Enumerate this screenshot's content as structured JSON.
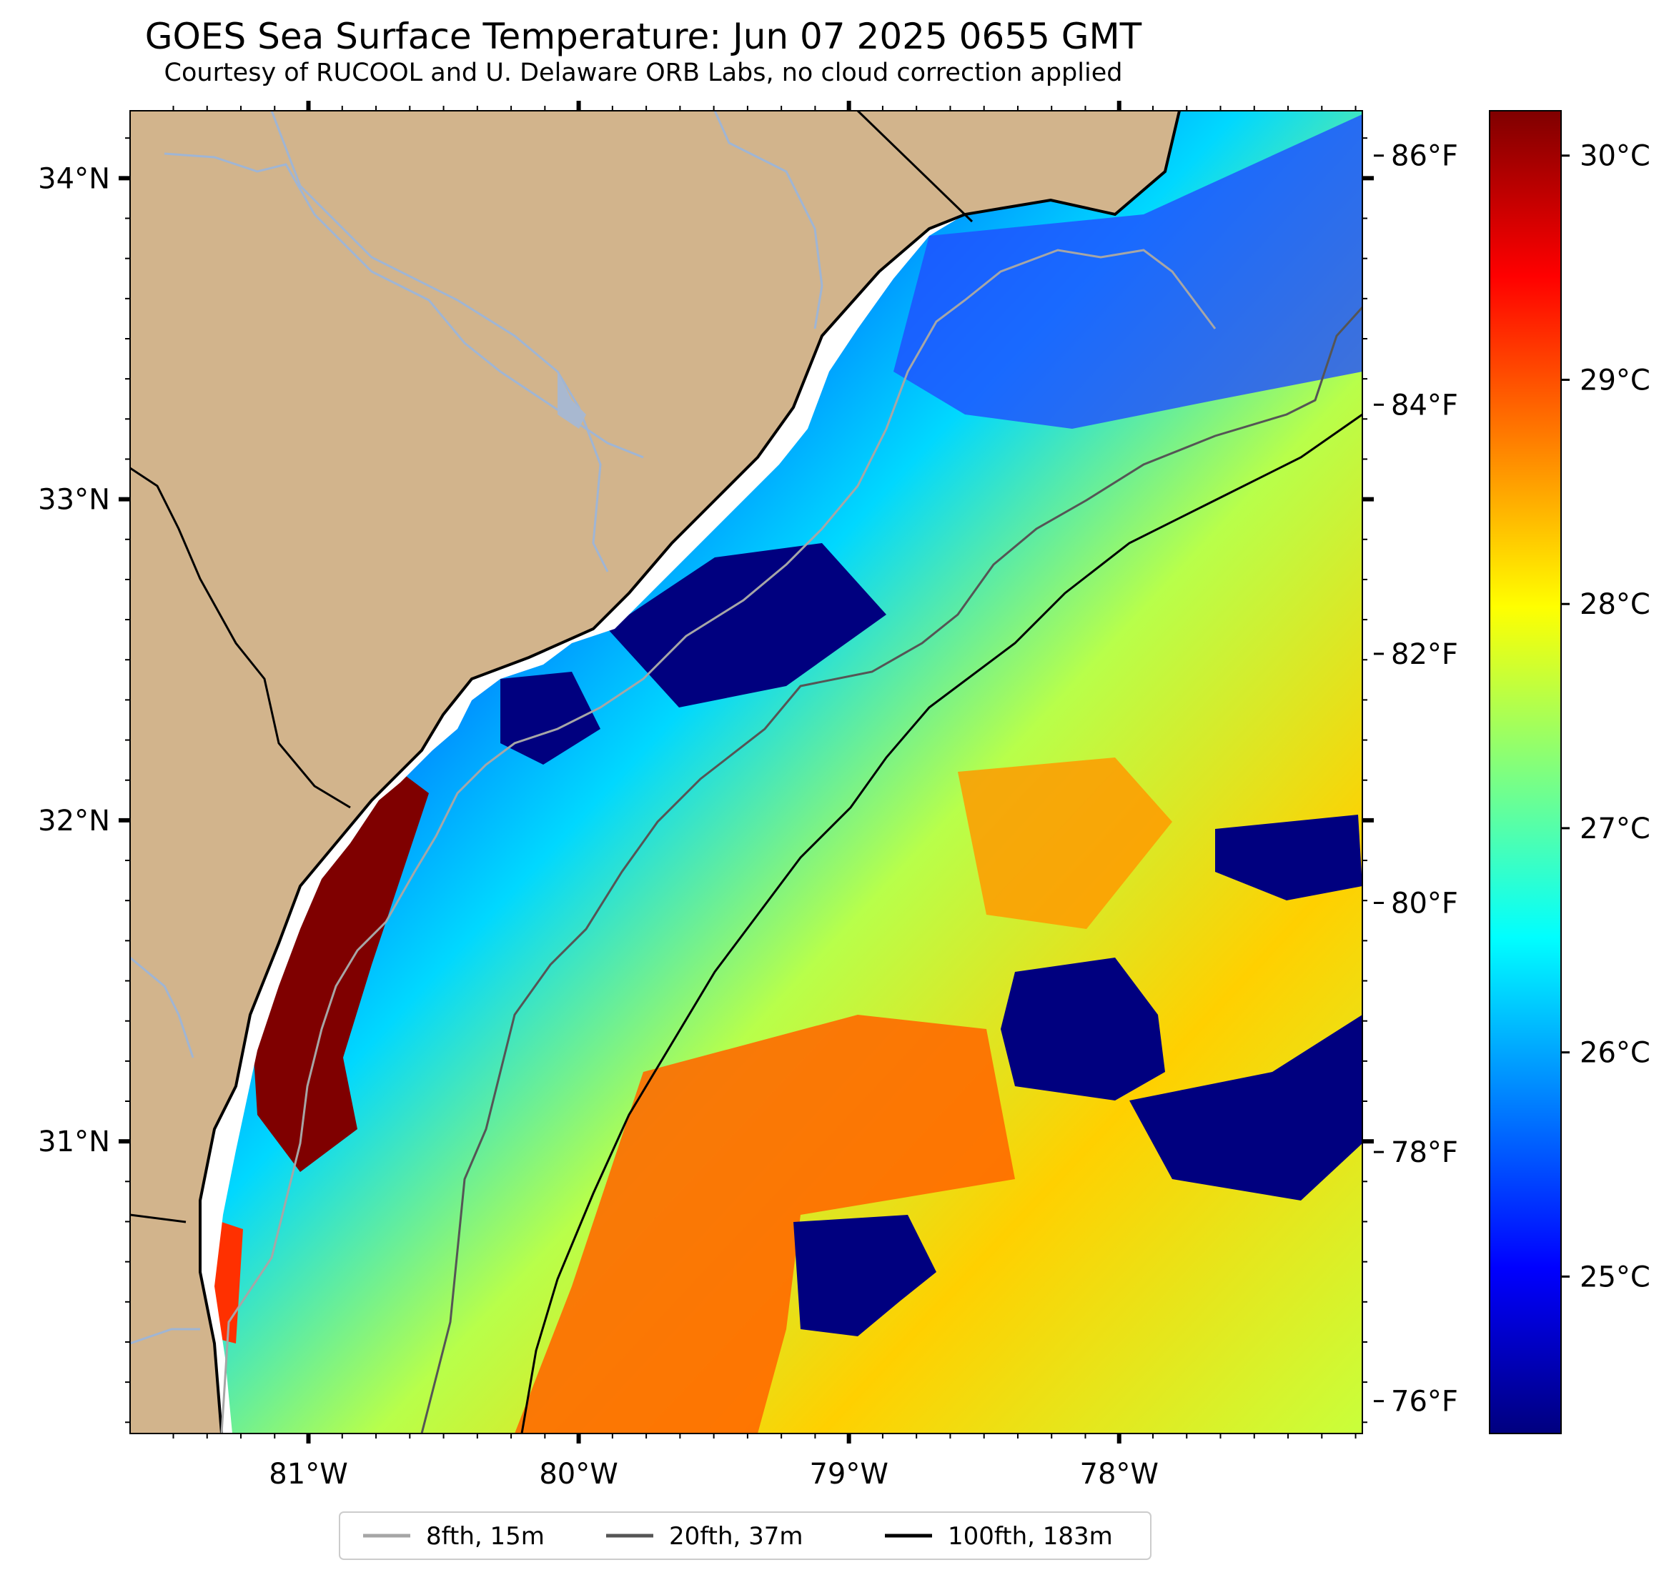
{
  "title": "GOES Sea Surface Temperature: Jun 07 2025 0655 GMT",
  "subtitle": "Courtesy of RUCOOL and U. Delaware ORB Labs, no cloud correction applied",
  "map": {
    "lon_range": [
      -81.66,
      -77.1
    ],
    "lat_range": [
      30.09,
      34.21
    ],
    "lon_ticks": [
      {
        "value": -81,
        "label": "81°W"
      },
      {
        "value": -80,
        "label": "80°W"
      },
      {
        "value": -79,
        "label": "79°W"
      },
      {
        "value": -78,
        "label": "78°W"
      }
    ],
    "lat_ticks": [
      {
        "value": 34,
        "label": "34°N"
      },
      {
        "value": 33,
        "label": "33°N"
      },
      {
        "value": 32,
        "label": "32°N"
      },
      {
        "value": 31,
        "label": "31°N"
      }
    ],
    "fahrenheit_ticks": [
      {
        "value": 86,
        "label": "86°F"
      },
      {
        "value": 84,
        "label": "84°F"
      },
      {
        "value": 82,
        "label": "82°F"
      },
      {
        "value": 80,
        "label": "80°F"
      },
      {
        "value": 78,
        "label": "78°F"
      },
      {
        "value": 76,
        "label": "76°F"
      }
    ],
    "colors": {
      "land": "#d2b48c",
      "rivers": "#9fb5d4",
      "coastline": "#000000",
      "isobath_8fth": "#a6a6a6",
      "isobath_20fth": "#555555",
      "isobath_100fth": "#000000"
    }
  },
  "colorbar": {
    "range_c": [
      24.3,
      30.2
    ],
    "ticks": [
      {
        "value": 30,
        "label": "30°C"
      },
      {
        "value": 29,
        "label": "29°C"
      },
      {
        "value": 28,
        "label": "28°C"
      },
      {
        "value": 27,
        "label": "27°C"
      },
      {
        "value": 26,
        "label": "26°C"
      },
      {
        "value": 25,
        "label": "25°C"
      }
    ],
    "colormap": [
      "#00007f",
      "#0000ff",
      "#007fff",
      "#00ffff",
      "#7fff7f",
      "#ffff00",
      "#ff7f00",
      "#ff0000",
      "#7f0000"
    ]
  },
  "legend": {
    "items": [
      {
        "label": "8fth, 15m",
        "color": "#a6a6a6"
      },
      {
        "label": "20fth, 37m",
        "color": "#555555"
      },
      {
        "label": "100fth, 183m",
        "color": "#000000"
      }
    ]
  }
}
